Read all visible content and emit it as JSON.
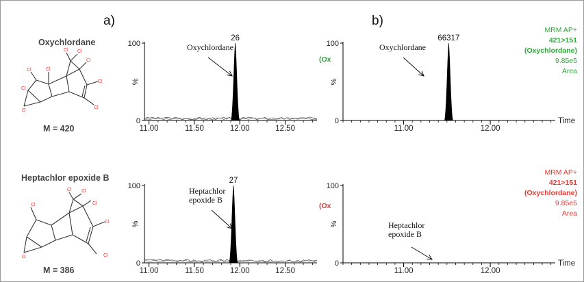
{
  "panel_labels": {
    "a": "a)",
    "b": "b)"
  },
  "molecules": [
    {
      "name": "Oxychlordane",
      "mass": "M = 420",
      "atom_cl": "Cl",
      "atom_o": "O"
    },
    {
      "name": "Heptachlor epoxide B",
      "mass": "M = 386",
      "atom_cl": "Cl",
      "atom_o": "O"
    }
  ],
  "colors": {
    "axis": "#000000",
    "peak": "#000000",
    "legend_green": "#2fa83a",
    "legend_red": "#e53935",
    "atom_label": "#e53935"
  },
  "legend_cut_label": "(Ox",
  "chart_data": [
    {
      "type": "line",
      "id": "a_top",
      "xlim": [
        10.95,
        12.85
      ],
      "ylim": [
        0,
        100
      ],
      "xticks": [
        "11.00",
        "11.50",
        "12.00",
        "12.50"
      ],
      "ytick_labels": [
        "0",
        "100"
      ],
      "ylabel": "%",
      "xlabel": "",
      "peak": {
        "x": 11.95,
        "height": 100,
        "label": "26"
      },
      "annotation": [
        "Oxychlordane"
      ],
      "noise": true,
      "legend": [],
      "legend_color": "green"
    },
    {
      "type": "line",
      "id": "b_top",
      "xlim": [
        10.3,
        12.75
      ],
      "ylim": [
        0,
        100
      ],
      "xticks": [
        "11.00",
        "12.00"
      ],
      "ytick_labels": [
        "0",
        "100"
      ],
      "ylabel": "%",
      "xlabel": "Time",
      "peak": {
        "x": 11.52,
        "height": 100,
        "label": "66317"
      },
      "annotation": [
        "Oxychlordane"
      ],
      "noise": false,
      "legend": [
        "MRM AP+",
        "421>151",
        "(Oxychlordane)",
        "9.85e5",
        "Area"
      ],
      "legend_color": "green"
    },
    {
      "type": "line",
      "id": "a_bottom",
      "xlim": [
        10.95,
        12.85
      ],
      "ylim": [
        0,
        100
      ],
      "xticks": [
        "11.00",
        "11.50",
        "12.00",
        "12.50"
      ],
      "ytick_labels": [
        "0",
        "100"
      ],
      "ylabel": "%",
      "xlabel": "",
      "peak": {
        "x": 11.93,
        "height": 100,
        "label": "27"
      },
      "annotation": [
        "Heptachlor",
        "epoxide B"
      ],
      "noise": true,
      "legend": [],
      "legend_color": "red"
    },
    {
      "type": "line",
      "id": "b_bottom",
      "xlim": [
        10.3,
        12.75
      ],
      "ylim": [
        0,
        100
      ],
      "xticks": [
        "11.00",
        "12.00"
      ],
      "ytick_labels": [
        "0",
        "100"
      ],
      "ylabel": "%",
      "xlabel": "Time",
      "peak": null,
      "annotation": [
        "Heptachlor",
        "epoxide B"
      ],
      "noise": false,
      "legend": [
        "MRM AP+",
        "421>151",
        "(Oxychlordane)",
        "9.85e5",
        "Area"
      ],
      "legend_color": "red"
    }
  ]
}
